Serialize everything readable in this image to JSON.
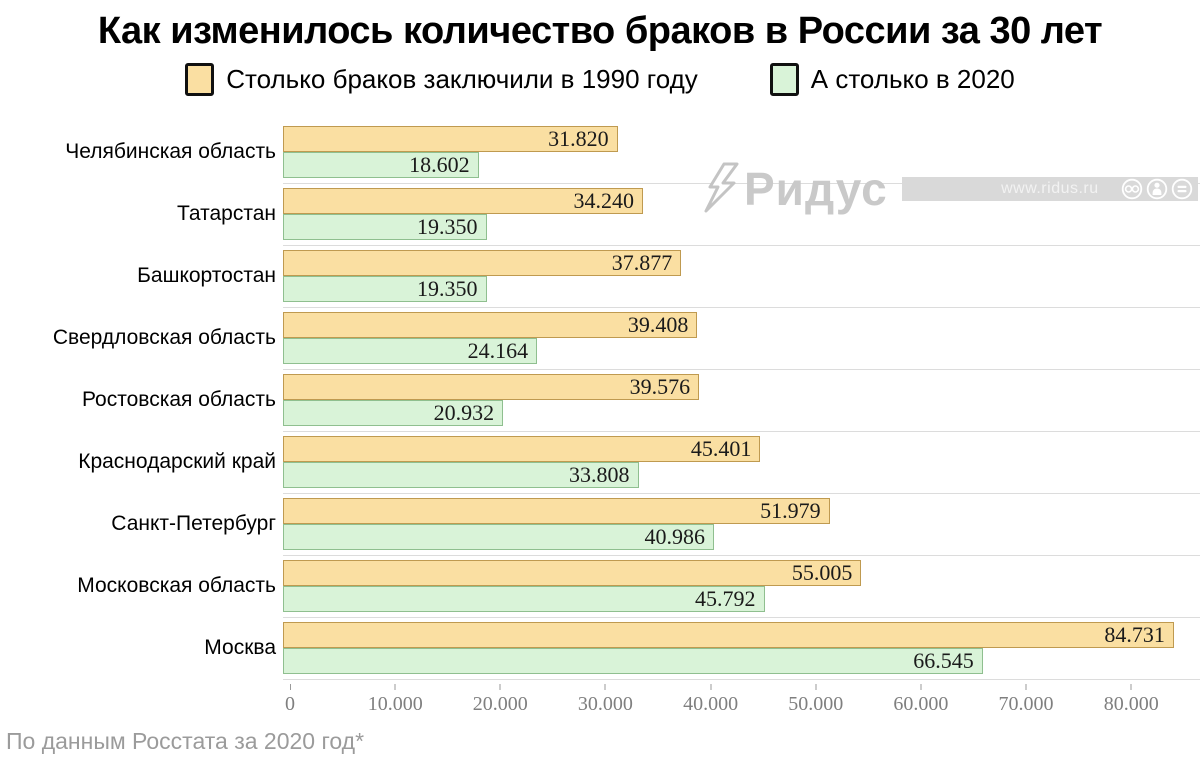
{
  "footer_note": "По данным Росстата за 2020 год*",
  "watermark": {
    "brand": "Ридус",
    "url": "www.ridus.ru",
    "icons": [
      "cc-icon",
      "attribution-person-icon",
      "equals-icon"
    ]
  },
  "colors": {
    "bar_1990_fill": "#fadfa2",
    "bar_1990_border": "#bf9a50",
    "bar_2020_fill": "#d9f3d8",
    "bar_2020_border": "#8fbf8f",
    "separator": "#dcdcdc",
    "axis_text": "#7f7f7f",
    "footer_text": "#9b9b9b",
    "watermark_gray": "#c9c9c9"
  },
  "chart_data": {
    "type": "bar",
    "orientation": "horizontal",
    "title": "Как изменилось количество браков в России за 30 лет",
    "legend_position": "top",
    "grid": "horizontal separators between category groups, no vertical gridlines",
    "xlim": [
      0,
      85100
    ],
    "categories": [
      "Челябинская область",
      "Татарстан",
      "Башкортостан",
      "Свердловская область",
      "Ростовская область",
      "Краснодарский край",
      "Санкт-Петербург",
      "Московская область",
      "Москва"
    ],
    "series": [
      {
        "name": "Столько браков заключили в 1990 году",
        "color": "#fadfa2",
        "values": [
          31820,
          34240,
          37877,
          39408,
          39576,
          45401,
          51979,
          55005,
          84731
        ],
        "display": [
          "31.820",
          "34.240",
          "37.877",
          "39.408",
          "39.576",
          "45.401",
          "51.979",
          "55.005",
          "84.731"
        ]
      },
      {
        "name": "А столько в 2020",
        "color": "#d9f3d8",
        "values": [
          18602,
          19350,
          19350,
          24164,
          20932,
          33808,
          40986,
          45792,
          66545
        ],
        "display": [
          "18.602",
          "19.350",
          "19.350",
          "24.164",
          "20.932",
          "33.808",
          "40.986",
          "45.792",
          "66.545"
        ]
      }
    ],
    "x_ticks": {
      "values": [
        0,
        10000,
        20000,
        30000,
        40000,
        50000,
        60000,
        70000,
        80000
      ],
      "labels": [
        "0",
        "10.000",
        "20.000",
        "30.000",
        "40.000",
        "50.000",
        "60.000",
        "70.000",
        "80.000"
      ]
    }
  }
}
